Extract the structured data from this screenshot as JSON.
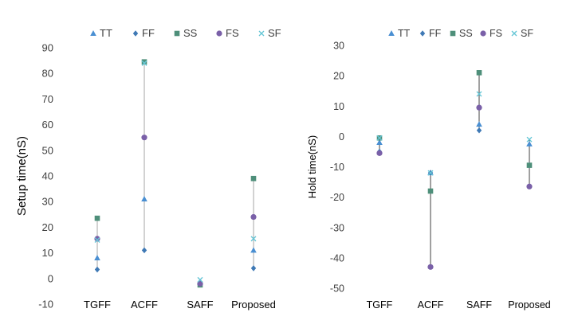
{
  "chart_data": [
    {
      "type": "scatter",
      "title": "",
      "xlabel": "",
      "ylabel": "Setup time(nS)",
      "ylim": [
        -10,
        90
      ],
      "yticks": [
        -10,
        0,
        10,
        20,
        30,
        40,
        50,
        60,
        70,
        80,
        90
      ],
      "grid": false,
      "legend_position": "top",
      "categories": [
        "TGFF",
        "ACFF",
        "SAFF",
        "Proposed"
      ],
      "series": [
        {
          "name": "TT",
          "marker": "triangle",
          "color": "#4a8fd2",
          "values": [
            8,
            31,
            -1.5,
            11
          ]
        },
        {
          "name": "FF",
          "marker": "diamond",
          "color": "#3f79b5",
          "values": [
            3.5,
            11,
            -2,
            4
          ]
        },
        {
          "name": "SS",
          "marker": "square",
          "color": "#4e8f7a",
          "values": [
            23.5,
            84.5,
            -2.5,
            39
          ]
        },
        {
          "name": "FS",
          "marker": "circle",
          "color": "#7a60a8",
          "values": [
            15.5,
            55,
            -2,
            24
          ]
        },
        {
          "name": "SF",
          "marker": "x",
          "color": "#66c6d6",
          "values": [
            15,
            84,
            -0.5,
            15.5
          ]
        }
      ]
    },
    {
      "type": "scatter",
      "title": "",
      "xlabel": "",
      "ylabel": "Hold time(nS)",
      "ylim": [
        -50,
        30
      ],
      "yticks": [
        -50,
        -40,
        -30,
        -20,
        -10,
        0,
        10,
        20,
        30
      ],
      "grid": false,
      "legend_position": "top",
      "categories": [
        "TGFF",
        "ACFF",
        "SAFF",
        "Proposed"
      ],
      "series": [
        {
          "name": "TT",
          "marker": "triangle",
          "color": "#4a8fd2",
          "values": [
            -2,
            -12,
            4,
            -2.5
          ]
        },
        {
          "name": "FF",
          "marker": "diamond",
          "color": "#3f79b5",
          "values": [
            -5,
            -12,
            2,
            -9.5
          ]
        },
        {
          "name": "SS",
          "marker": "square",
          "color": "#4e8f7a",
          "values": [
            -0.5,
            -18,
            21,
            -9.5
          ]
        },
        {
          "name": "FS",
          "marker": "circle",
          "color": "#7a60a8",
          "values": [
            -5.5,
            -43,
            9.5,
            -16.5
          ]
        },
        {
          "name": "SF",
          "marker": "x",
          "color": "#66c6d6",
          "values": [
            -0.5,
            -12,
            14,
            -1
          ]
        }
      ]
    }
  ]
}
